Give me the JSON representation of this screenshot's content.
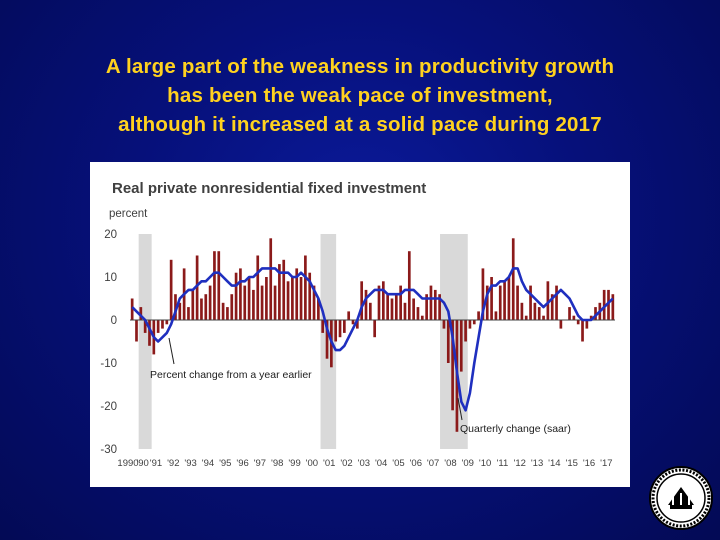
{
  "slide": {
    "title_lines": [
      "A large part of the weakness in productivity growth",
      "has been the weak pace of investment,",
      "although it increased at a solid pace during 2017"
    ],
    "colors": {
      "background": "#06107a",
      "title": "#ffd21f"
    },
    "logo_icon": "federal-reserve-seal-icon"
  },
  "chart_data": {
    "type": "bar",
    "title": "Real private nonresidential fixed investment",
    "ylabel": "percent",
    "ylim": [
      -30,
      20
    ],
    "yticks": [
      20,
      10,
      0,
      -10,
      -20,
      -30
    ],
    "x_tick_labels": [
      "1990",
      "'90",
      "'91",
      "'92",
      "'93",
      "'94",
      "'95",
      "'96",
      "'97",
      "'98",
      "'99",
      "'00",
      "'01",
      "'02",
      "'03",
      "'04",
      "'05",
      "'06",
      "'07",
      "'08",
      "'09",
      "'10",
      "'11",
      "'12",
      "'13",
      "'14",
      "'15",
      "'16",
      "'17"
    ],
    "x_range": [
      1990.0,
      2018.0
    ],
    "recessions": [
      [
        1990.5,
        1991.25
      ],
      [
        2001.0,
        2001.9
      ],
      [
        2007.9,
        2009.5
      ]
    ],
    "annotations": [
      "Percent change from a year earlier",
      "Quarterly change (saar)"
    ],
    "colors": {
      "bars": "#8b1a1a",
      "line": "#1f2fbf",
      "recession": "#d9d9d9",
      "text": "#404040"
    },
    "series": [
      {
        "name": "Quarterly change (saar)",
        "x": [
          1990.0,
          1990.25,
          1990.5,
          1990.75,
          1991.0,
          1991.25,
          1991.5,
          1991.75,
          1992.0,
          1992.25,
          1992.5,
          1992.75,
          1993.0,
          1993.25,
          1993.5,
          1993.75,
          1994.0,
          1994.25,
          1994.5,
          1994.75,
          1995.0,
          1995.25,
          1995.5,
          1995.75,
          1996.0,
          1996.25,
          1996.5,
          1996.75,
          1997.0,
          1997.25,
          1997.5,
          1997.75,
          1998.0,
          1998.25,
          1998.5,
          1998.75,
          1999.0,
          1999.25,
          1999.5,
          1999.75,
          2000.0,
          2000.25,
          2000.5,
          2000.75,
          2001.0,
          2001.25,
          2001.5,
          2001.75,
          2002.0,
          2002.25,
          2002.5,
          2002.75,
          2003.0,
          2003.25,
          2003.5,
          2003.75,
          2004.0,
          2004.25,
          2004.5,
          2004.75,
          2005.0,
          2005.25,
          2005.5,
          2005.75,
          2006.0,
          2006.25,
          2006.5,
          2006.75,
          2007.0,
          2007.25,
          2007.5,
          2007.75,
          2008.0,
          2008.25,
          2008.5,
          2008.75,
          2009.0,
          2009.25,
          2009.5,
          2009.75,
          2010.0,
          2010.25,
          2010.5,
          2010.75,
          2011.0,
          2011.25,
          2011.5,
          2011.75,
          2012.0,
          2012.25,
          2012.5,
          2012.75,
          2013.0,
          2013.25,
          2013.5,
          2013.75,
          2014.0,
          2014.25,
          2014.5,
          2014.75,
          2015.0,
          2015.25,
          2015.5,
          2015.75,
          2016.0,
          2016.25,
          2016.5,
          2016.75,
          2017.0,
          2017.25,
          2017.5,
          2017.75
        ],
        "values": [
          5,
          -5,
          3,
          -3,
          -6,
          -8,
          -3,
          -2,
          -1,
          14,
          6,
          4,
          12,
          3,
          7,
          15,
          5,
          6,
          8,
          16,
          16,
          4,
          3,
          6,
          11,
          12,
          8,
          10,
          7,
          15,
          8,
          10,
          19,
          8,
          13,
          14,
          9,
          10,
          12,
          10,
          15,
          11,
          8,
          5,
          -3,
          -9,
          -11,
          -5,
          -4,
          -3,
          2,
          -1,
          -2,
          9,
          7,
          4,
          -4,
          8,
          9,
          6,
          5,
          6,
          8,
          4,
          16,
          5,
          3,
          1,
          6,
          8,
          7,
          6,
          -2,
          -10,
          -21,
          -26,
          -12,
          -5,
          -2,
          -1,
          2,
          12,
          8,
          10,
          2,
          8,
          9,
          10,
          19,
          8,
          4,
          1,
          8,
          4,
          3,
          1,
          9,
          6,
          8,
          -2,
          0,
          3,
          1,
          -1,
          -5,
          -2,
          1,
          3,
          4,
          7,
          7,
          6
        ]
      },
      {
        "name": "Percent change from a year earlier",
        "x": [
          1990.0,
          1990.25,
          1990.5,
          1990.75,
          1991.0,
          1991.25,
          1991.5,
          1991.75,
          1992.0,
          1992.25,
          1992.5,
          1992.75,
          1993.0,
          1993.25,
          1993.5,
          1993.75,
          1994.0,
          1994.25,
          1994.5,
          1994.75,
          1995.0,
          1995.25,
          1995.5,
          1995.75,
          1996.0,
          1996.25,
          1996.5,
          1996.75,
          1997.0,
          1997.25,
          1997.5,
          1997.75,
          1998.0,
          1998.25,
          1998.5,
          1998.75,
          1999.0,
          1999.25,
          1999.5,
          1999.75,
          2000.0,
          2000.25,
          2000.5,
          2000.75,
          2001.0,
          2001.25,
          2001.5,
          2001.75,
          2002.0,
          2002.25,
          2002.5,
          2002.75,
          2003.0,
          2003.25,
          2003.5,
          2003.75,
          2004.0,
          2004.25,
          2004.5,
          2004.75,
          2005.0,
          2005.25,
          2005.5,
          2005.75,
          2006.0,
          2006.25,
          2006.5,
          2006.75,
          2007.0,
          2007.25,
          2007.5,
          2007.75,
          2008.0,
          2008.25,
          2008.5,
          2008.75,
          2009.0,
          2009.25,
          2009.5,
          2009.75,
          2010.0,
          2010.25,
          2010.5,
          2010.75,
          2011.0,
          2011.25,
          2011.5,
          2011.75,
          2012.0,
          2012.25,
          2012.5,
          2012.75,
          2013.0,
          2013.25,
          2013.5,
          2013.75,
          2014.0,
          2014.25,
          2014.5,
          2014.75,
          2015.0,
          2015.25,
          2015.5,
          2015.75,
          2016.0,
          2016.25,
          2016.5,
          2016.75,
          2017.0,
          2017.25,
          2017.5,
          2017.75
        ],
        "values": [
          3,
          2,
          1,
          0,
          -2,
          -4,
          -5,
          -4,
          -3,
          -1,
          2,
          5,
          6,
          7,
          7,
          8,
          9,
          9,
          10,
          11,
          11,
          10,
          9,
          8,
          8,
          9,
          9,
          10,
          10,
          11,
          12,
          12,
          12,
          12,
          11,
          11,
          11,
          10,
          10,
          11,
          10,
          9,
          7,
          5,
          2,
          -2,
          -5,
          -7,
          -7,
          -6,
          -4,
          -2,
          0,
          3,
          5,
          6,
          7,
          7,
          7,
          6,
          6,
          6,
          6,
          7,
          7,
          7,
          6,
          5,
          5,
          5,
          5,
          5,
          4,
          2,
          -4,
          -12,
          -19,
          -21,
          -17,
          -10,
          -4,
          2,
          6,
          8,
          8,
          9,
          9,
          10,
          12,
          12,
          9,
          7,
          6,
          5,
          4,
          3,
          4,
          5,
          6,
          7,
          6,
          5,
          3,
          1,
          0,
          0,
          0,
          1,
          2,
          3,
          4,
          5
        ]
      }
    ]
  }
}
